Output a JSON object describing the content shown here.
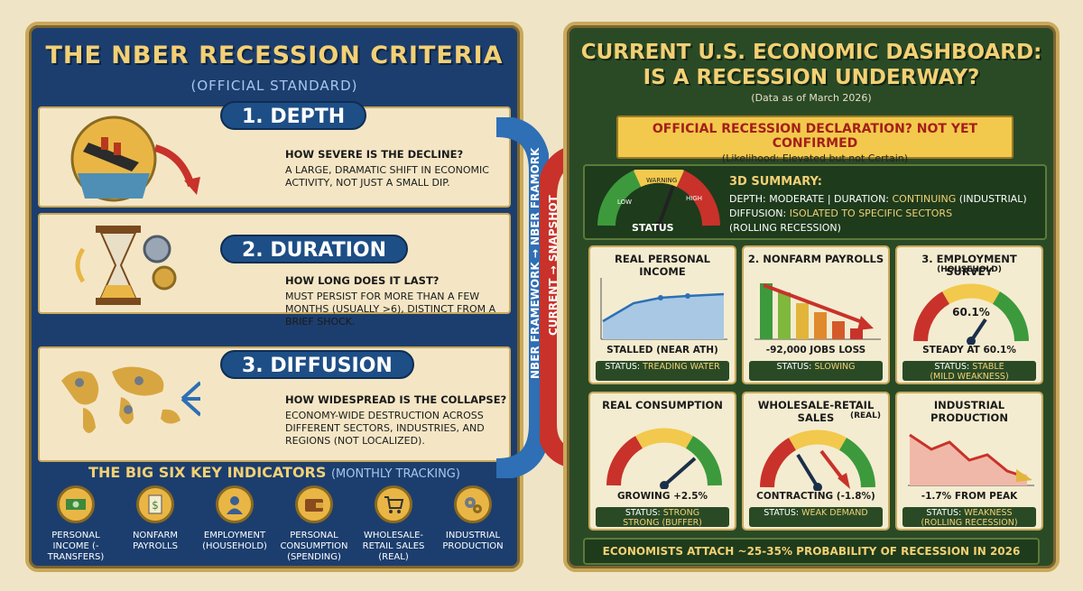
{
  "left": {
    "title": "THE NBER RECESSION CRITERIA",
    "subtitle": "(OFFICIAL STANDARD)",
    "criteria": [
      {
        "label": "1. DEPTH",
        "question": "HOW SEVERE IS THE DECLINE?",
        "desc": "A LARGE, DRAMATIC SHIFT IN ECONOMIC ACTIVITY, NOT JUST A SMALL DIP."
      },
      {
        "label": "2. DURATION",
        "question": "HOW LONG DOES IT LAST?",
        "desc": "MUST PERSIST FOR MORE THAN A FEW MONTHS (USUALLY >6), DISTINCT FROM A BRIEF SHOCK."
      },
      {
        "label": "3. DIFFUSION",
        "question": "HOW WIDESPREAD IS THE COLLAPSE?",
        "desc": "ECONOMY-WIDE DESTRUCTION ACROSS DIFFERENT SECTORS, INDUSTRIES, AND REGIONS (NOT LOCALIZED)."
      }
    ],
    "bigsix_title": "THE BIG SIX KEY INDICATORS",
    "bigsix_sub": "(MONTHLY TRACKING)",
    "indicators": [
      {
        "label": "PERSONAL INCOME (-TRANSFERS)",
        "icon": "cash-icon"
      },
      {
        "label": "NONFARM PAYROLLS",
        "icon": "payroll-icon"
      },
      {
        "label": "EMPLOYMENT (HOUSEHOLD)",
        "icon": "person-icon"
      },
      {
        "label": "PERSONAL CONSUMPTION (SPENDING)",
        "icon": "wallet-icon"
      },
      {
        "label": "WHOLESALE-RETAIL SALES (REAL)",
        "icon": "cart-icon"
      },
      {
        "label": "INDUSTRIAL PRODUCTION",
        "icon": "gears-icon"
      }
    ]
  },
  "connector": {
    "blue": "NBER FRAMEWORK → NBER FRAMORK",
    "red": "CURRENT → SNAPSHOT"
  },
  "right": {
    "title_line1": "CURRENT U.S. ECONOMIC DASHBOARD:",
    "title_line2": "IS A RECESSION UNDERWAY?",
    "subtitle": "(Data as of March 2026)",
    "banner_title": "OFFICIAL RECESSION DECLARATION? NOT YET CONFIRMED",
    "banner_sub": "(Likelihood: Elevated but not Certain)",
    "gauge_labels": {
      "low": "LOW",
      "warning": "WARNING",
      "high": "HIGH"
    },
    "status_label": "STATUS",
    "summary_title": "3D SUMMARY:",
    "summary_depth_pre": "DEPTH: MODERATE | DURATION: ",
    "summary_depth_hl": "CONTINUING",
    "summary_depth_post": " (INDUSTRIAL)",
    "summary_diff_pre": "DIFFUSION: ",
    "summary_diff_hl": "ISOLATED TO SPECIFIC SECTORS",
    "summary_line3": "(ROLLING RECESSION)",
    "cards": [
      {
        "title": "REAL PERSONAL INCOME",
        "title2": "",
        "value": "STALLED (NEAR ATH)",
        "status_pre": "STATUS: ",
        "status_hl": "TREADING WATER",
        "status_line2": ""
      },
      {
        "title": "2. NONFARM PAYROLLS",
        "title2": "",
        "value": "-92,000 JOBS LOSS",
        "status_pre": "STATUS: ",
        "status_hl": "SLOWING",
        "status_line2": ""
      },
      {
        "title": "3. EMPLOYMENT SURVEY",
        "title2": "(HOUSEHOLD)",
        "gauge_value": "60.1%",
        "value": "STEADY AT 60.1%",
        "status_pre": "STATUS: ",
        "status_hl": "STABLE",
        "status_line2": "(MILD WEAKNESS)"
      },
      {
        "title": "REAL CONSUMPTION",
        "title2": "",
        "value": "GROWING +2.5%",
        "status_pre": "STATUS: ",
        "status_hl": "STRONG",
        "status_line2": "STRONG (BUFFER)"
      },
      {
        "title": "WHOLESALE-RETAIL SALES",
        "title2": "(REAL)",
        "value": "CONTRACTING (-1.8%)",
        "status_pre": "STATUS: ",
        "status_hl": "WEAK DEMAND",
        "status_line2": ""
      },
      {
        "title": "INDUSTRIAL PRODUCTION",
        "title2": "",
        "value": "-1.7% FROM PEAK",
        "status_pre": "STATUS: ",
        "status_hl": "WEAKNESS",
        "status_line2": "(ROLLING RECESSION)"
      }
    ],
    "footer": "ECONOMISTS ATTACH ~25-35% PROBABILITY OF RECESSION IN 2026"
  },
  "colors": {
    "left_bg": "#1c3e6e",
    "right_bg": "#2a4a26",
    "gold": "#f3d074",
    "accent_red": "#c8322a",
    "accent_blue": "#2e6fb5"
  }
}
